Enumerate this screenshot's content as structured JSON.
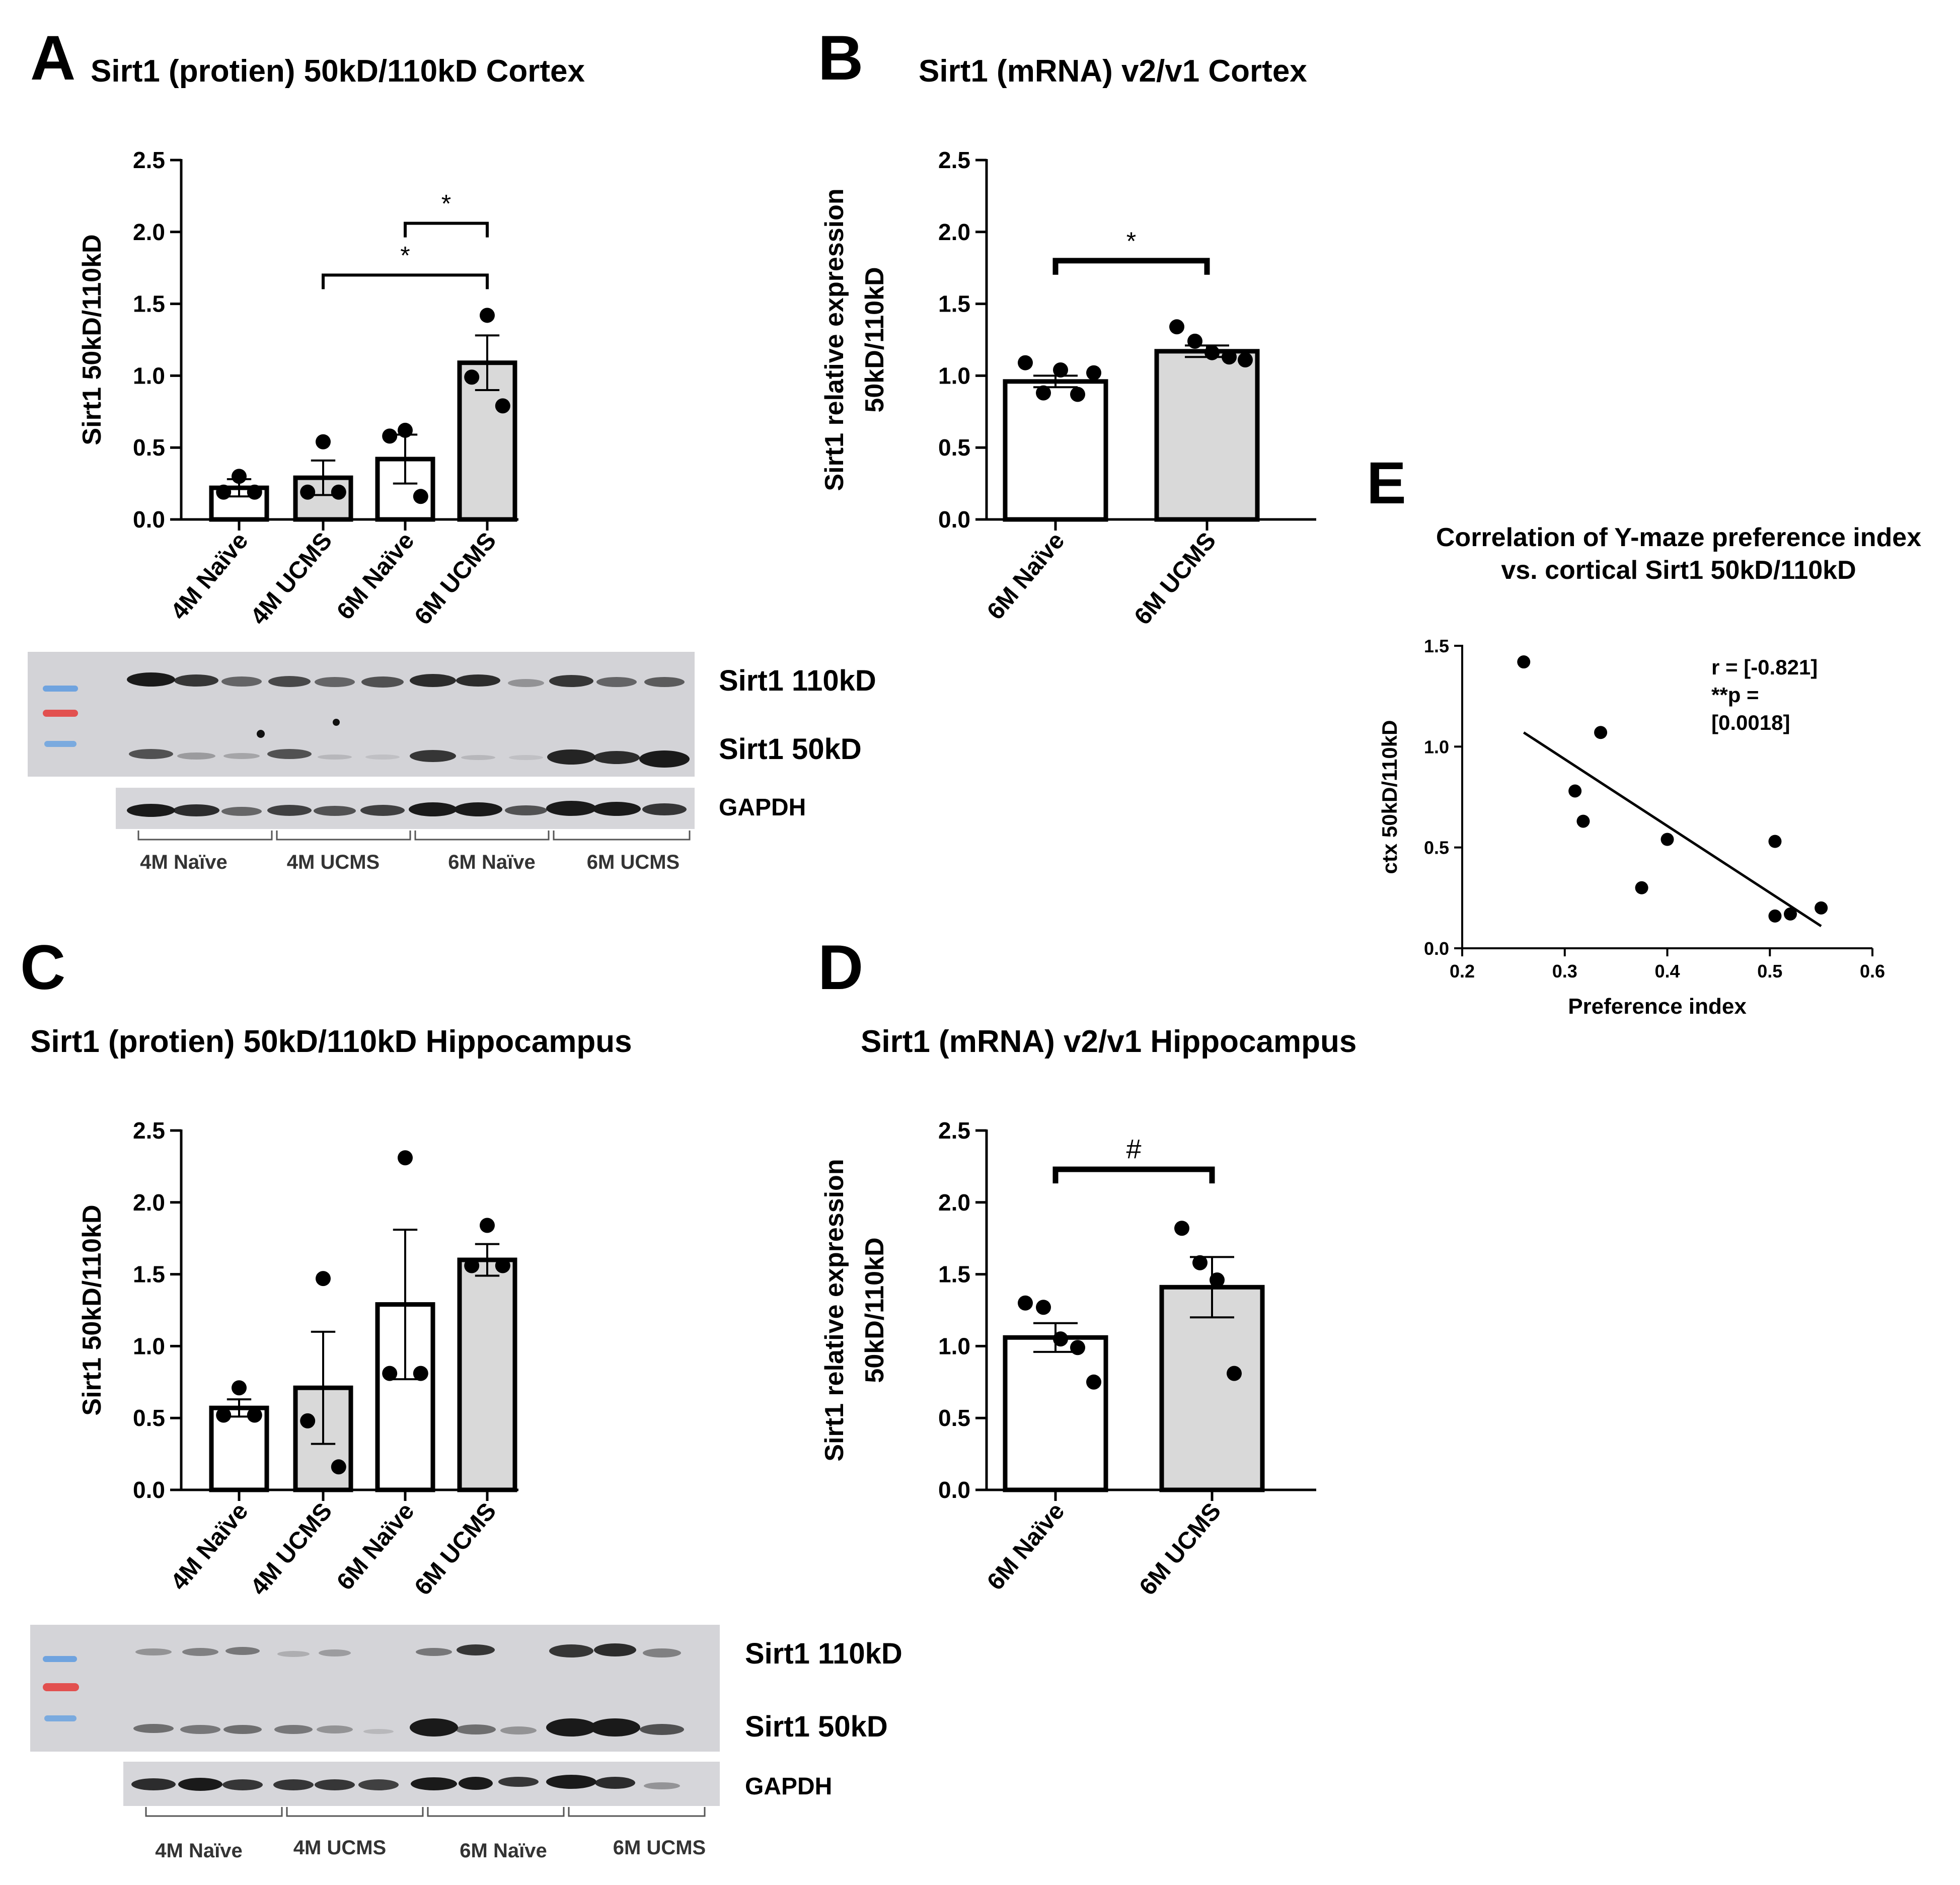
{
  "panels": {
    "A": {
      "letter": "A",
      "title": "Sirt1 (protien) 50kD/110kD Cortex"
    },
    "B": {
      "letter": "B",
      "title": "Sirt1 (mRNA) v2/v1 Cortex"
    },
    "C": {
      "letter": "C",
      "title": "Sirt1 (protien) 50kD/110kD Hippocampus"
    },
    "D": {
      "letter": "D",
      "title": "Sirt1 (mRNA) v2/v1 Hippocampus"
    },
    "E": {
      "letter": "E",
      "title_line1": "Correlation of Y-maze preference index",
      "title_line2": "vs. cortical Sirt1 50kD/110kD"
    }
  },
  "blots": {
    "A": {
      "label_110": "Sirt1 110kD",
      "label_50": "Sirt1 50kD",
      "label_gapdh": "GAPDH",
      "groups": [
        "4M Naïve",
        "4M UCMS",
        "6M Naïve",
        "6M UCMS"
      ]
    },
    "C": {
      "label_110": "Sirt1 110kD",
      "label_50": "Sirt1 50kD",
      "label_gapdh": "GAPDH",
      "groups": [
        "4M Naïve",
        "4M UCMS",
        "6M Naïve",
        "6M UCMS"
      ]
    }
  },
  "colors": {
    "bar_naive": "#ffffff",
    "bar_ucms": "#d9d9d9",
    "stroke": "#000000",
    "blot_bg": "#d4d4d8",
    "ladder_blue": "#6fa3df",
    "ladder_red": "#e2504f"
  },
  "chart_data": [
    {
      "id": "A",
      "type": "bar",
      "title": "Sirt1 (protien) 50kD/110kD Cortex",
      "ylabel": "Sirt1 50kD/110kD",
      "xlabel": "",
      "ylim": [
        0,
        2.5
      ],
      "yticks": [
        0.0,
        0.5,
        1.0,
        1.5,
        2.0,
        2.5
      ],
      "categories": [
        "4M Naïve",
        "4M UCMS",
        "6M Naïve",
        "6M UCMS"
      ],
      "values": [
        0.22,
        0.29,
        0.42,
        1.09
      ],
      "sem": [
        0.06,
        0.12,
        0.17,
        0.19
      ],
      "points": [
        [
          0.3,
          0.19,
          0.19
        ],
        [
          0.54,
          0.19,
          0.19
        ],
        [
          0.62,
          0.58,
          0.16
        ],
        [
          1.42,
          0.99,
          0.79
        ]
      ],
      "fills": [
        "naive",
        "ucms",
        "naive",
        "ucms"
      ],
      "significance": [
        {
          "from": 2,
          "to": 3,
          "y": 2.06,
          "label": "*"
        },
        {
          "from": 1,
          "to": 3,
          "y": 1.7,
          "label": "*"
        }
      ]
    },
    {
      "id": "B",
      "type": "bar",
      "title": "Sirt1 (mRNA) v2/v1 Cortex",
      "ylabel_line1": "Sirt1 relative expression",
      "ylabel_line2": "50kD/110kD",
      "xlabel": "",
      "ylim": [
        0,
        2.5
      ],
      "yticks": [
        0.0,
        0.5,
        1.0,
        1.5,
        2.0,
        2.5
      ],
      "categories": [
        "6M Naïve",
        "6M UCMS"
      ],
      "values": [
        0.96,
        1.17
      ],
      "sem": [
        0.04,
        0.04
      ],
      "points": [
        [
          1.09,
          0.88,
          1.04,
          0.87,
          1.02
        ],
        [
          1.34,
          1.24,
          1.16,
          1.13,
          1.11
        ]
      ],
      "fills": [
        "naive",
        "ucms"
      ],
      "significance": [
        {
          "from": 0,
          "to": 1,
          "y": 1.8,
          "label": "*"
        }
      ]
    },
    {
      "id": "C",
      "type": "bar",
      "title": "Sirt1 (protien) 50kD/110kD Hippocampus",
      "ylabel": "Sirt1 50kD/110kD",
      "xlabel": "",
      "ylim": [
        0,
        2.5
      ],
      "yticks": [
        0.0,
        0.5,
        1.0,
        1.5,
        2.0,
        2.5
      ],
      "categories": [
        "4M Naïve",
        "4M UCMS",
        "6M Naïve",
        "6M UCMS"
      ],
      "values": [
        0.57,
        0.71,
        1.29,
        1.6
      ],
      "sem": [
        0.06,
        0.39,
        0.52,
        0.11
      ],
      "points": [
        [
          0.71,
          0.52,
          0.52
        ],
        [
          1.47,
          0.48,
          0.16
        ],
        [
          2.31,
          0.81,
          0.81
        ],
        [
          1.84,
          1.56,
          1.56
        ]
      ],
      "fills": [
        "naive",
        "ucms",
        "naive",
        "ucms"
      ],
      "significance": []
    },
    {
      "id": "D",
      "type": "bar",
      "title": "Sirt1 (mRNA) v2/v1 Hippocampus",
      "ylabel_line1": "Sirt1 relative expression",
      "ylabel_line2": "50kD/110kD",
      "xlabel": "",
      "ylim": [
        0,
        2.5
      ],
      "yticks": [
        0.0,
        0.5,
        1.0,
        1.5,
        2.0,
        2.5
      ],
      "categories": [
        "6M Naïve",
        "6M UCMS"
      ],
      "values": [
        1.06,
        1.41
      ],
      "sem": [
        0.1,
        0.21
      ],
      "points": [
        [
          1.3,
          1.27,
          1.05,
          0.99,
          0.75
        ],
        [
          1.82,
          1.58,
          1.46,
          0.81
        ]
      ],
      "fills": [
        "naive",
        "ucms"
      ],
      "significance": [
        {
          "from": 0,
          "to": 1,
          "y": 2.23,
          "label": "#"
        }
      ]
    },
    {
      "id": "E",
      "type": "scatter",
      "title": "Correlation of Y-maze preference index vs. cortical Sirt1 50kD/110kD",
      "xlabel": "Preference index",
      "ylabel": "ctx 50kD/110kD",
      "xlim": [
        0.2,
        0.6
      ],
      "ylim": [
        0.0,
        1.5
      ],
      "xticks": [
        0.2,
        0.3,
        0.4,
        0.5,
        0.6
      ],
      "yticks": [
        0.0,
        0.5,
        1.0,
        1.5
      ],
      "x": [
        0.26,
        0.335,
        0.31,
        0.318,
        0.4,
        0.375,
        0.505,
        0.505,
        0.52,
        0.55
      ],
      "y": [
        1.42,
        1.07,
        0.78,
        0.63,
        0.54,
        0.3,
        0.53,
        0.16,
        0.17,
        0.2
      ],
      "fit_line": {
        "x": [
          0.26,
          0.55
        ],
        "y": [
          1.07,
          0.11
        ]
      },
      "annotation": {
        "line1": "r = [-0.821]",
        "line2": "**p =",
        "line3": "[0.0018]"
      }
    }
  ]
}
